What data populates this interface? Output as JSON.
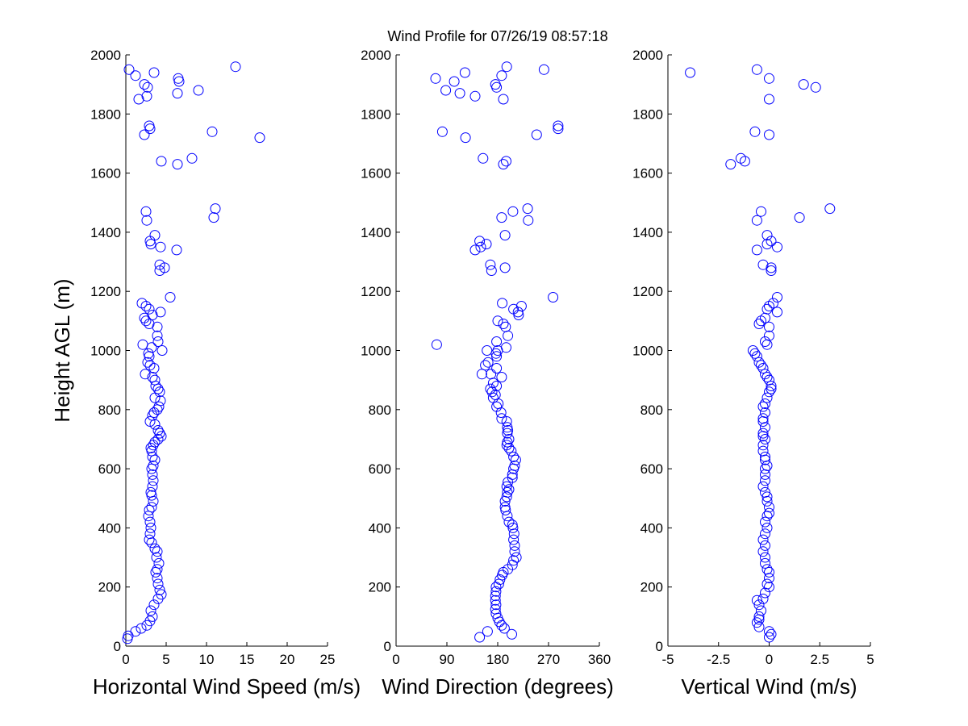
{
  "page_title": "Wind Profile for  07/26/19 08:57:18",
  "chart_data": [
    {
      "type": "scatter",
      "xlabel": "Horizontal Wind Speed (m/s)",
      "ylabel": "Height AGL (m)",
      "xlim": [
        0,
        25
      ],
      "ylim": [
        0,
        2000
      ],
      "xticks": [
        "0",
        "5",
        "10",
        "15",
        "20",
        "25"
      ],
      "xtick_values": [
        0,
        5,
        10,
        15,
        20,
        25
      ],
      "yticks": [
        "0",
        "200",
        "400",
        "600",
        "800",
        "1000",
        "1200",
        "1400",
        "1600",
        "1800",
        "2000"
      ],
      "ytick_values": [
        0,
        200,
        400,
        600,
        800,
        1000,
        1200,
        1400,
        1600,
        1800,
        2000
      ],
      "marker": "circle-open",
      "color": "#0000ff",
      "points": [
        [
          0.4,
          1950
        ],
        [
          1.2,
          1930
        ],
        [
          2.3,
          1900
        ],
        [
          2.7,
          1890
        ],
        [
          1.6,
          1850
        ],
        [
          2.6,
          1860
        ],
        [
          3.5,
          1940
        ],
        [
          6.5,
          1920
        ],
        [
          6.6,
          1910
        ],
        [
          9.0,
          1880
        ],
        [
          6.4,
          1870
        ],
        [
          13.6,
          1960
        ],
        [
          2.9,
          1760
        ],
        [
          3.0,
          1750
        ],
        [
          2.3,
          1730
        ],
        [
          10.7,
          1740
        ],
        [
          16.6,
          1720
        ],
        [
          4.4,
          1640
        ],
        [
          6.4,
          1630
        ],
        [
          8.2,
          1650
        ],
        [
          2.5,
          1470
        ],
        [
          2.6,
          1440
        ],
        [
          11.1,
          1480
        ],
        [
          10.9,
          1450
        ],
        [
          3.6,
          1390
        ],
        [
          3.0,
          1370
        ],
        [
          3.1,
          1360
        ],
        [
          4.3,
          1350
        ],
        [
          6.3,
          1340
        ],
        [
          4.2,
          1290
        ],
        [
          4.8,
          1280
        ],
        [
          4.2,
          1270
        ],
        [
          5.5,
          1180
        ],
        [
          2.0,
          1160
        ],
        [
          2.5,
          1150
        ],
        [
          2.9,
          1140
        ],
        [
          4.3,
          1130
        ],
        [
          2.3,
          1110
        ],
        [
          3.3,
          1120
        ],
        [
          2.5,
          1100
        ],
        [
          2.9,
          1090
        ],
        [
          3.9,
          1080
        ],
        [
          3.9,
          1050
        ],
        [
          4.0,
          1030
        ],
        [
          2.1,
          1020
        ],
        [
          3.2,
          1010
        ],
        [
          4.5,
          1000
        ],
        [
          2.8,
          990
        ],
        [
          2.9,
          980
        ],
        [
          2.7,
          960
        ],
        [
          3.0,
          950
        ],
        [
          3.5,
          940
        ],
        [
          2.4,
          920
        ],
        [
          3.3,
          910
        ],
        [
          3.6,
          900
        ],
        [
          3.7,
          880
        ],
        [
          4.0,
          870
        ],
        [
          4.2,
          860
        ],
        [
          3.6,
          840
        ],
        [
          4.3,
          830
        ],
        [
          4.1,
          810
        ],
        [
          3.9,
          800
        ],
        [
          3.5,
          790
        ],
        [
          3.3,
          780
        ],
        [
          3.0,
          760
        ],
        [
          3.6,
          750
        ],
        [
          4.0,
          730
        ],
        [
          4.2,
          720
        ],
        [
          4.4,
          710
        ],
        [
          4.0,
          700
        ],
        [
          3.6,
          690
        ],
        [
          3.4,
          680
        ],
        [
          3.1,
          670
        ],
        [
          3.2,
          660
        ],
        [
          3.3,
          640
        ],
        [
          3.6,
          630
        ],
        [
          3.4,
          610
        ],
        [
          3.2,
          600
        ],
        [
          3.3,
          580
        ],
        [
          3.4,
          560
        ],
        [
          3.3,
          540
        ],
        [
          3.1,
          520
        ],
        [
          3.2,
          510
        ],
        [
          3.4,
          490
        ],
        [
          3.2,
          470
        ],
        [
          2.9,
          460
        ],
        [
          2.8,
          440
        ],
        [
          3.0,
          420
        ],
        [
          3.1,
          400
        ],
        [
          3.0,
          380
        ],
        [
          2.9,
          360
        ],
        [
          3.2,
          350
        ],
        [
          3.6,
          330
        ],
        [
          3.9,
          320
        ],
        [
          3.8,
          300
        ],
        [
          4.1,
          280
        ],
        [
          3.9,
          260
        ],
        [
          3.7,
          250
        ],
        [
          3.9,
          230
        ],
        [
          4.0,
          210
        ],
        [
          4.2,
          190
        ],
        [
          4.4,
          175
        ],
        [
          4.0,
          160
        ],
        [
          3.5,
          140
        ],
        [
          3.1,
          120
        ],
        [
          3.3,
          100
        ],
        [
          3.0,
          85
        ],
        [
          2.6,
          70
        ],
        [
          1.9,
          60
        ],
        [
          1.2,
          50
        ],
        [
          0.3,
          35
        ],
        [
          0.2,
          25
        ]
      ]
    },
    {
      "type": "scatter",
      "xlabel": "Wind Direction (degrees)",
      "ylabel": "",
      "xlim": [
        0,
        360
      ],
      "ylim": [
        0,
        2000
      ],
      "xticks": [
        "0",
        "90",
        "180",
        "270",
        "360"
      ],
      "xtick_values": [
        0,
        90,
        180,
        270,
        360
      ],
      "yticks": [
        "0",
        "200",
        "400",
        "600",
        "800",
        "1000",
        "1200",
        "1400",
        "1600",
        "1800",
        "2000"
      ],
      "ytick_values": [
        0,
        200,
        400,
        600,
        800,
        1000,
        1200,
        1400,
        1600,
        1800,
        2000
      ],
      "marker": "circle-open",
      "color": "#0000ff",
      "points": [
        [
          70,
          1920
        ],
        [
          88,
          1880
        ],
        [
          103,
          1910
        ],
        [
          113,
          1870
        ],
        [
          122,
          1940
        ],
        [
          140,
          1860
        ],
        [
          176,
          1900
        ],
        [
          178,
          1890
        ],
        [
          187,
          1930
        ],
        [
          196,
          1960
        ],
        [
          190,
          1850
        ],
        [
          262,
          1950
        ],
        [
          287,
          1760
        ],
        [
          287,
          1750
        ],
        [
          82,
          1740
        ],
        [
          123,
          1720
        ],
        [
          249,
          1730
        ],
        [
          154,
          1650
        ],
        [
          190,
          1630
        ],
        [
          195,
          1640
        ],
        [
          207,
          1470
        ],
        [
          187,
          1450
        ],
        [
          233,
          1480
        ],
        [
          234,
          1440
        ],
        [
          148,
          1370
        ],
        [
          193,
          1390
        ],
        [
          140,
          1340
        ],
        [
          150,
          1350
        ],
        [
          160,
          1360
        ],
        [
          167,
          1290
        ],
        [
          169,
          1270
        ],
        [
          193,
          1280
        ],
        [
          278,
          1180
        ],
        [
          188,
          1160
        ],
        [
          222,
          1150
        ],
        [
          208,
          1140
        ],
        [
          216,
          1130
        ],
        [
          217,
          1120
        ],
        [
          180,
          1100
        ],
        [
          190,
          1090
        ],
        [
          194,
          1080
        ],
        [
          198,
          1050
        ],
        [
          178,
          1030
        ],
        [
          72,
          1020
        ],
        [
          195,
          1010
        ],
        [
          180,
          1000
        ],
        [
          161,
          1000
        ],
        [
          177,
          990
        ],
        [
          178,
          980
        ],
        [
          163,
          960
        ],
        [
          158,
          950
        ],
        [
          178,
          940
        ],
        [
          187,
          910
        ],
        [
          152,
          920
        ],
        [
          168,
          920
        ],
        [
          172,
          890
        ],
        [
          178,
          880
        ],
        [
          167,
          870
        ],
        [
          170,
          860
        ],
        [
          176,
          850
        ],
        [
          172,
          840
        ],
        [
          181,
          820
        ],
        [
          178,
          810
        ],
        [
          186,
          790
        ],
        [
          187,
          770
        ],
        [
          196,
          760
        ],
        [
          197,
          740
        ],
        [
          198,
          730
        ],
        [
          197,
          720
        ],
        [
          200,
          700
        ],
        [
          197,
          690
        ],
        [
          196,
          680
        ],
        [
          200,
          670
        ],
        [
          204,
          660
        ],
        [
          208,
          640
        ],
        [
          212,
          630
        ],
        [
          210,
          610
        ],
        [
          208,
          600
        ],
        [
          206,
          580
        ],
        [
          206,
          570
        ],
        [
          198,
          555
        ],
        [
          196,
          540
        ],
        [
          200,
          530
        ],
        [
          197,
          520
        ],
        [
          196,
          505
        ],
        [
          193,
          490
        ],
        [
          193,
          470
        ],
        [
          194,
          460
        ],
        [
          197,
          440
        ],
        [
          200,
          420
        ],
        [
          206,
          410
        ],
        [
          207,
          400
        ],
        [
          209,
          380
        ],
        [
          208,
          360
        ],
        [
          210,
          340
        ],
        [
          210,
          320
        ],
        [
          213,
          300
        ],
        [
          208,
          290
        ],
        [
          206,
          275
        ],
        [
          198,
          260
        ],
        [
          190,
          250
        ],
        [
          188,
          240
        ],
        [
          184,
          225
        ],
        [
          182,
          210
        ],
        [
          177,
          200
        ],
        [
          177,
          185
        ],
        [
          176,
          170
        ],
        [
          176,
          155
        ],
        [
          177,
          140
        ],
        [
          176,
          125
        ],
        [
          177,
          110
        ],
        [
          180,
          95
        ],
        [
          183,
          82
        ],
        [
          187,
          70
        ],
        [
          192,
          60
        ],
        [
          162,
          50
        ],
        [
          148,
          30
        ],
        [
          205,
          40
        ]
      ]
    },
    {
      "type": "scatter",
      "xlabel": "Vertical Wind (m/s)",
      "ylabel": "",
      "xlim": [
        -5,
        5
      ],
      "ylim": [
        0,
        2000
      ],
      "xticks": [
        "-5",
        "-2.5",
        "0",
        "2.5",
        "5"
      ],
      "xtick_values": [
        -5,
        -2.5,
        0,
        2.5,
        5
      ],
      "yticks": [
        "0",
        "200",
        "400",
        "600",
        "800",
        "1000",
        "1200",
        "1400",
        "1600",
        "1800",
        "2000"
      ],
      "ytick_values": [
        0,
        200,
        400,
        600,
        800,
        1000,
        1200,
        1400,
        1600,
        1800,
        2000
      ],
      "marker": "circle-open",
      "color": "#0000ff",
      "points": [
        [
          -3.9,
          1940
        ],
        [
          -0.6,
          1950
        ],
        [
          0.0,
          1920
        ],
        [
          1.7,
          1900
        ],
        [
          2.3,
          1890
        ],
        [
          0.0,
          1850
        ],
        [
          -0.7,
          1740
        ],
        [
          0.0,
          1730
        ],
        [
          -1.4,
          1650
        ],
        [
          -1.2,
          1640
        ],
        [
          -1.9,
          1630
        ],
        [
          -0.4,
          1470
        ],
        [
          -0.6,
          1440
        ],
        [
          1.5,
          1450
        ],
        [
          3.0,
          1480
        ],
        [
          -0.1,
          1390
        ],
        [
          0.1,
          1370
        ],
        [
          -0.1,
          1360
        ],
        [
          0.4,
          1350
        ],
        [
          -0.6,
          1340
        ],
        [
          -0.3,
          1290
        ],
        [
          0.1,
          1280
        ],
        [
          0.1,
          1270
        ],
        [
          0.4,
          1180
        ],
        [
          0.2,
          1160
        ],
        [
          0.0,
          1150
        ],
        [
          -0.1,
          1140
        ],
        [
          0.4,
          1130
        ],
        [
          -0.2,
          1110
        ],
        [
          -0.4,
          1100
        ],
        [
          -0.5,
          1090
        ],
        [
          0.0,
          1080
        ],
        [
          0.0,
          1050
        ],
        [
          -0.2,
          1030
        ],
        [
          -0.1,
          1020
        ],
        [
          -0.8,
          1000
        ],
        [
          -0.7,
          990
        ],
        [
          -0.6,
          980
        ],
        [
          -0.5,
          960
        ],
        [
          -0.4,
          950
        ],
        [
          -0.3,
          940
        ],
        [
          -0.2,
          920
        ],
        [
          -0.1,
          910
        ],
        [
          0.0,
          900
        ],
        [
          0.1,
          880
        ],
        [
          0.1,
          870
        ],
        [
          0.0,
          860
        ],
        [
          -0.1,
          840
        ],
        [
          -0.2,
          820
        ],
        [
          -0.3,
          810
        ],
        [
          -0.2,
          790
        ],
        [
          -0.3,
          770
        ],
        [
          -0.3,
          760
        ],
        [
          -0.2,
          740
        ],
        [
          -0.3,
          720
        ],
        [
          -0.3,
          710
        ],
        [
          -0.2,
          700
        ],
        [
          -0.3,
          680
        ],
        [
          -0.3,
          660
        ],
        [
          -0.2,
          640
        ],
        [
          -0.2,
          630
        ],
        [
          -0.1,
          610
        ],
        [
          -0.2,
          600
        ],
        [
          -0.2,
          580
        ],
        [
          -0.2,
          560
        ],
        [
          -0.3,
          540
        ],
        [
          -0.2,
          520
        ],
        [
          -0.1,
          505
        ],
        [
          -0.1,
          490
        ],
        [
          0.0,
          470
        ],
        [
          0.0,
          450
        ],
        [
          -0.1,
          440
        ],
        [
          -0.2,
          420
        ],
        [
          -0.1,
          400
        ],
        [
          -0.2,
          380
        ],
        [
          -0.3,
          360
        ],
        [
          -0.2,
          340
        ],
        [
          -0.3,
          320
        ],
        [
          -0.2,
          300
        ],
        [
          -0.2,
          280
        ],
        [
          -0.1,
          260
        ],
        [
          0.0,
          250
        ],
        [
          0.0,
          230
        ],
        [
          -0.1,
          210
        ],
        [
          0.0,
          200
        ],
        [
          -0.2,
          180
        ],
        [
          -0.3,
          160
        ],
        [
          -0.6,
          155
        ],
        [
          -0.5,
          140
        ],
        [
          -0.4,
          120
        ],
        [
          -0.5,
          100
        ],
        [
          -0.5,
          90
        ],
        [
          -0.6,
          80
        ],
        [
          -0.5,
          65
        ],
        [
          0.0,
          50
        ],
        [
          0.1,
          40
        ],
        [
          0.0,
          30
        ]
      ]
    }
  ]
}
